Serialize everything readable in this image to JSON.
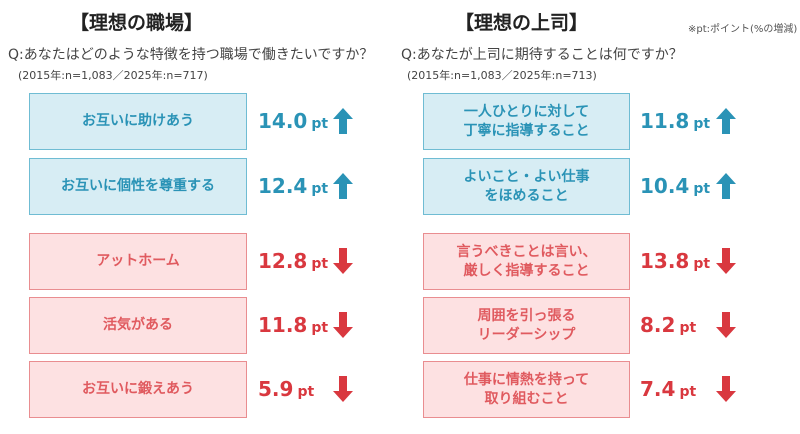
{
  "note": "※pt:ポイント(%の増減)",
  "colors": {
    "up": "#2a93b6",
    "down": "#d9383f"
  },
  "panels": [
    {
      "title": "【理想の職場】",
      "question": "Q:あなたはどのような特徴を持つ職場で働きたいですか？",
      "sample": "(2015年:n=1,083／2025年:n=717)",
      "items": [
        {
          "label": "お互いに助けあう",
          "value": "14.0",
          "unit": "pt",
          "direction": "up"
        },
        {
          "label": "お互いに個性を尊重する",
          "value": "12.4",
          "unit": "pt",
          "direction": "up"
        },
        {
          "label": "アットホーム",
          "value": "12.8",
          "unit": "pt",
          "direction": "down"
        },
        {
          "label": "活気がある",
          "value": "11.8",
          "unit": "pt",
          "direction": "down"
        },
        {
          "label": "お互いに鍛えあう",
          "value": "5.9",
          "unit": "pt",
          "direction": "down"
        }
      ]
    },
    {
      "title": "【理想の上司】",
      "question": "Q:あなたが上司に期待することは何ですか？",
      "sample": "(2015年:n=1,083／2025年:n=713)",
      "items": [
        {
          "label": "一人ひとりに対して\n丁寧に指導すること",
          "value": "11.8",
          "unit": "pt",
          "direction": "up"
        },
        {
          "label": "よいこと・よい仕事\nをほめること",
          "value": "10.4",
          "unit": "pt",
          "direction": "up"
        },
        {
          "label": "言うべきことは言い、\n厳しく指導すること",
          "value": "13.8",
          "unit": "pt",
          "direction": "down"
        },
        {
          "label": "周囲を引っ張る\nリーダーシップ",
          "value": "8.2",
          "unit": "pt",
          "direction": "down"
        },
        {
          "label": "仕事に情熱を持って\n取り組むこと",
          "value": "7.4",
          "unit": "pt",
          "direction": "down"
        }
      ]
    }
  ]
}
